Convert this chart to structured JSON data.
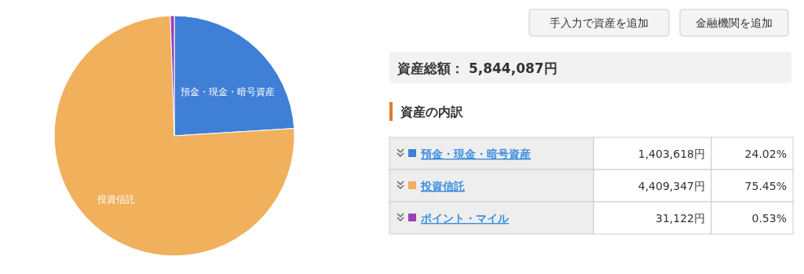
{
  "chart_data": {
    "type": "pie",
    "title": "資産の内訳",
    "subtitle": "資産総額： 5,844,087円",
    "categories": [
      "預金・現金・暗号資産",
      "投資信託",
      "ポイント・マイル"
    ],
    "values": [
      24.02,
      75.45,
      0.53
    ],
    "legend": "right",
    "colors": [
      "#3f7fd6",
      "#f0b05c",
      "#9b3fb5"
    ],
    "annotations": [
      "24.02%",
      "75.45%",
      "0.53%",
      "手入力で資産を追加",
      "金融機関を追加",
      "1,403,618円",
      "4,409,347円",
      "31,122円"
    ]
  }
}
